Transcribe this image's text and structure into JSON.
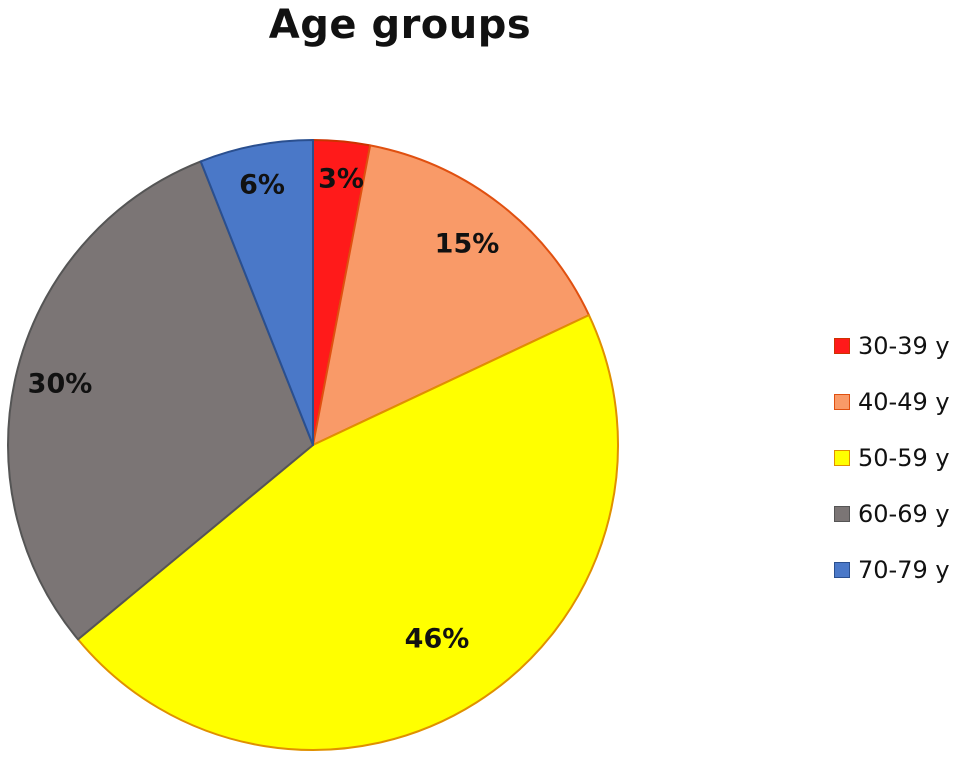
{
  "chart_data": {
    "type": "pie",
    "title": "Age groups",
    "categories": [
      "30-39 y",
      "40-49 y",
      "50-59 y",
      "60-69 y",
      "70-79 y"
    ],
    "values": [
      3,
      15,
      46,
      30,
      6
    ],
    "data_labels": [
      "3%",
      "15%",
      "46%",
      "30%",
      "6%"
    ],
    "colors": [
      "#ff1a1a",
      "#f99a68",
      "#ffff00",
      "#7b7575",
      "#4a78c8"
    ],
    "stroke_colors": [
      "#cc3300",
      "#e05010",
      "#e09000",
      "#555555",
      "#2a4f8f"
    ],
    "start_angle": "12 o'clock",
    "direction": "clockwise",
    "legend_placement": "right"
  }
}
